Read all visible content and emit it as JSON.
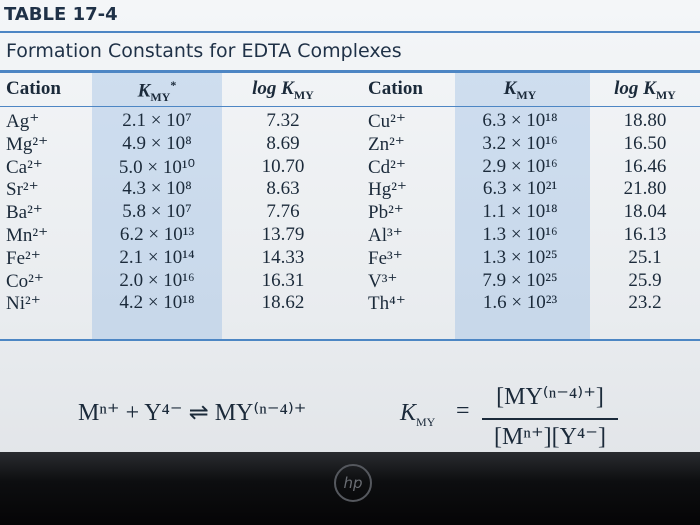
{
  "header": {
    "number": "TABLE 17-4",
    "title": "Formation Constants for EDTA Complexes"
  },
  "table": {
    "columns": [
      {
        "text": "Cation"
      },
      {
        "text": "K",
        "sub": "MY",
        "sup": "*"
      },
      {
        "text": "log K",
        "sub": "MY"
      },
      {
        "text": "Cation"
      },
      {
        "text": "K",
        "sub": "MY"
      },
      {
        "text": "log K",
        "sub": "MY"
      }
    ],
    "rows": [
      [
        "Ag⁺",
        "2.1 × 10⁷",
        "7.32",
        "Cu²⁺",
        "6.3 × 10¹⁸",
        "18.80"
      ],
      [
        "Mg²⁺",
        "4.9 × 10⁸",
        "8.69",
        "Zn²⁺",
        "3.2 × 10¹⁶",
        "16.50"
      ],
      [
        "Ca²⁺",
        "5.0 × 10¹⁰",
        "10.70",
        "Cd²⁺",
        "2.9 × 10¹⁶",
        "16.46"
      ],
      [
        "Sr²⁺",
        "4.3 × 10⁸",
        "8.63",
        "Hg²⁺",
        "6.3 × 10²¹",
        "21.80"
      ],
      [
        "Ba²⁺",
        "5.8 × 10⁷",
        "7.76",
        "Pb²⁺",
        "1.1 × 10¹⁸",
        "18.04"
      ],
      [
        "Mn²⁺",
        "6.2 × 10¹³",
        "13.79",
        "Al³⁺",
        "1.3 × 10¹⁶",
        "16.13"
      ],
      [
        "Fe²⁺",
        "2.1 × 10¹⁴",
        "14.33",
        "Fe³⁺",
        "1.3 × 10²⁵",
        "25.1"
      ],
      [
        "Co²⁺",
        "2.0 × 10¹⁶",
        "16.31",
        "V³⁺",
        "7.9 × 10²⁵",
        "25.9"
      ],
      [
        "Ni²⁺",
        "4.2 × 10¹⁸",
        "18.62",
        "Th⁴⁺",
        "1.6 × 10²³",
        "23.2"
      ]
    ]
  },
  "equation": {
    "reaction": "Mⁿ⁺ + Y⁴⁻ ⇌ MY⁽ⁿ⁻⁴⁾⁺",
    "constant": {
      "text": "K",
      "sub": "MY"
    },
    "relation": "=",
    "numerator": "[MY⁽ⁿ⁻⁴⁾⁺]",
    "denominator": "[Mⁿ⁺][Y⁴⁻]"
  },
  "footer": {
    "logo": "hp"
  }
}
